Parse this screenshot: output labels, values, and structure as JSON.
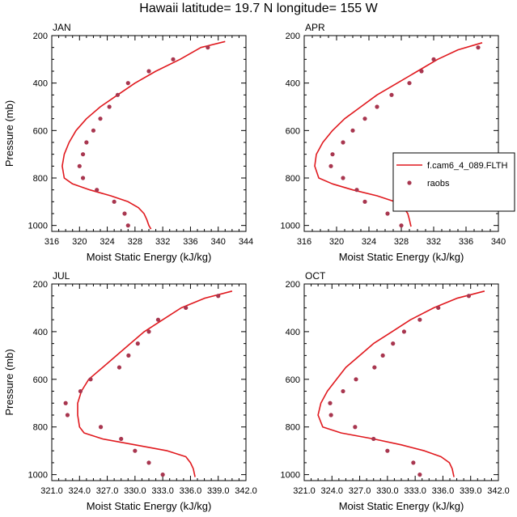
{
  "title": "Hawaii  latitude= 19.7 N longitude= 155 W",
  "colors": {
    "model": "#e0191e",
    "obs": "#a8364f",
    "axis": "#000000"
  },
  "legend": {
    "entries": [
      {
        "label": "f.cam6_4_089.FLTH",
        "kind": "line"
      },
      {
        "label": "raobs",
        "kind": "marker"
      }
    ]
  },
  "chart_data": [
    {
      "type": "line",
      "panel": "JAN",
      "xlabel": "Moist Static Energy (kJ/kg)",
      "ylabel": "Pressure (mb)",
      "xlim": [
        316,
        344
      ],
      "ylim": [
        200,
        1025
      ],
      "y_reversed": true,
      "xticks": [
        316,
        320,
        324,
        328,
        332,
        336,
        340,
        344
      ],
      "xtick_labels": [
        "316",
        "320",
        "324",
        "328",
        "332",
        "336",
        "340",
        "344"
      ],
      "yticks": [
        200,
        400,
        600,
        800,
        1000
      ],
      "ytick_labels": [
        "200",
        "400",
        "600",
        "800",
        "1000"
      ],
      "series": [
        {
          "name": "f.cam6_4_089.FLTH",
          "style": "line",
          "x": [
            341.0,
            337.5,
            334.5,
            331.0,
            328.0,
            325.5,
            323.0,
            321.0,
            319.5,
            318.5,
            317.8,
            317.5,
            317.8,
            319.0,
            321.5,
            324.5,
            327.0,
            328.5,
            329.3,
            329.7,
            330.0,
            330.3
          ],
          "y": [
            225,
            250,
            300,
            350,
            400,
            450,
            500,
            550,
            600,
            650,
            700,
            750,
            800,
            825,
            850,
            875,
            900,
            925,
            950,
            975,
            1000,
            1015
          ]
        },
        {
          "name": "raobs",
          "style": "marker",
          "x": [
            338.5,
            333.5,
            330.0,
            327.0,
            325.5,
            324.3,
            323.0,
            322.0,
            321.0,
            320.5,
            320.0,
            320.5,
            322.5,
            326.5,
            325.0,
            327.0
          ],
          "y": [
            250,
            300,
            350,
            400,
            450,
            500,
            550,
            600,
            650,
            700,
            750,
            800,
            850,
            950,
            900,
            1000
          ]
        }
      ]
    },
    {
      "type": "line",
      "panel": "APR",
      "xlabel": "Moist Static Energy (kJ/kg)",
      "ylabel": "",
      "xlim": [
        316,
        340
      ],
      "ylim": [
        200,
        1025
      ],
      "y_reversed": true,
      "xticks": [
        316,
        320,
        324,
        328,
        332,
        336,
        340
      ],
      "xtick_labels": [
        "316",
        "320",
        "324",
        "328",
        "332",
        "336",
        "340"
      ],
      "yticks": [
        200,
        400,
        600,
        800,
        1000
      ],
      "ytick_labels": [
        "200",
        "400",
        "600",
        "800",
        "1000"
      ],
      "series": [
        {
          "name": "f.cam6_4_089.FLTH",
          "style": "line",
          "x": [
            338.0,
            335.0,
            332.5,
            330.0,
            327.5,
            325.0,
            323.0,
            321.0,
            319.5,
            318.3,
            317.5,
            317.3,
            317.8,
            319.5,
            322.0,
            325.0,
            327.2,
            328.3,
            328.8,
            329.0,
            329.2
          ],
          "y": [
            230,
            260,
            300,
            350,
            400,
            450,
            500,
            550,
            600,
            650,
            700,
            750,
            800,
            825,
            850,
            875,
            900,
            925,
            950,
            975,
            1005
          ]
        },
        {
          "name": "raobs",
          "style": "marker",
          "x": [
            337.5,
            332.0,
            330.5,
            329.0,
            326.8,
            325.0,
            323.5,
            322.0,
            320.8,
            319.5,
            319.3,
            320.8,
            322.5,
            323.5,
            326.3,
            328.0
          ],
          "y": [
            250,
            300,
            350,
            400,
            450,
            500,
            550,
            600,
            650,
            700,
            750,
            800,
            850,
            900,
            950,
            1000
          ]
        }
      ]
    },
    {
      "type": "line",
      "panel": "JUL",
      "xlabel": "Moist Static Energy (kJ/kg)",
      "ylabel": "Pressure (mb)",
      "xlim": [
        321,
        342
      ],
      "ylim": [
        200,
        1025
      ],
      "y_reversed": true,
      "xticks": [
        321,
        324,
        327,
        330,
        333,
        336,
        339,
        342
      ],
      "xtick_labels": [
        "321.0",
        "324.0",
        "327.0",
        "330.0",
        "333.0",
        "336.0",
        "339.0",
        "342.0"
      ],
      "yticks": [
        200,
        400,
        600,
        800,
        1000
      ],
      "ytick_labels": [
        "200",
        "400",
        "600",
        "800",
        "1000"
      ],
      "series": [
        {
          "name": "f.cam6_4_089.FLTH",
          "style": "line",
          "x": [
            340.5,
            337.5,
            335.0,
            333.0,
            331.0,
            329.5,
            328.0,
            326.5,
            325.0,
            324.2,
            323.8,
            323.8,
            324.0,
            324.5,
            326.5,
            330.0,
            333.5,
            335.5,
            336.0,
            336.3,
            336.5
          ],
          "y": [
            230,
            260,
            300,
            350,
            400,
            450,
            500,
            550,
            600,
            650,
            700,
            750,
            800,
            825,
            850,
            875,
            900,
            925,
            950,
            975,
            1010
          ]
        },
        {
          "name": "raobs",
          "style": "marker",
          "x": [
            339.0,
            335.5,
            332.5,
            331.5,
            330.3,
            329.3,
            328.3,
            325.2,
            324.1,
            322.5,
            322.7,
            326.3,
            328.5,
            330.0,
            331.5,
            333.0
          ],
          "y": [
            250,
            300,
            350,
            400,
            450,
            500,
            550,
            600,
            650,
            700,
            750,
            800,
            850,
            900,
            950,
            1000
          ]
        }
      ]
    },
    {
      "type": "line",
      "panel": "OCT",
      "xlabel": "Moist Static Energy (kJ/kg)",
      "ylabel": "",
      "xlim": [
        321,
        342
      ],
      "ylim": [
        200,
        1025
      ],
      "y_reversed": true,
      "xticks": [
        321,
        324,
        327,
        330,
        333,
        336,
        339,
        342
      ],
      "xtick_labels": [
        "321.0",
        "324.0",
        "327.0",
        "330.0",
        "333.0",
        "336.0",
        "339.0",
        "342.0"
      ],
      "yticks": [
        200,
        400,
        600,
        800,
        1000
      ],
      "ytick_labels": [
        "200",
        "400",
        "600",
        "800",
        "1000"
      ],
      "series": [
        {
          "name": "f.cam6_4_089.FLTH",
          "style": "line",
          "x": [
            340.5,
            337.5,
            335.0,
            332.5,
            330.5,
            328.5,
            327.0,
            325.5,
            324.5,
            323.5,
            322.8,
            322.5,
            323.0,
            325.0,
            328.5,
            331.5,
            334.0,
            335.8,
            336.7,
            337.0,
            337.2
          ],
          "y": [
            230,
            260,
            300,
            350,
            400,
            450,
            500,
            550,
            600,
            650,
            700,
            750,
            800,
            825,
            850,
            875,
            900,
            925,
            950,
            975,
            1010
          ]
        },
        {
          "name": "raobs",
          "style": "marker",
          "x": [
            338.8,
            335.5,
            333.5,
            331.8,
            330.6,
            329.5,
            328.6,
            326.6,
            325.2,
            323.8,
            323.9,
            326.5,
            328.5,
            330.0,
            332.8,
            333.5
          ],
          "y": [
            250,
            300,
            350,
            400,
            450,
            500,
            550,
            600,
            650,
            700,
            750,
            800,
            850,
            900,
            950,
            1000
          ]
        }
      ]
    }
  ]
}
